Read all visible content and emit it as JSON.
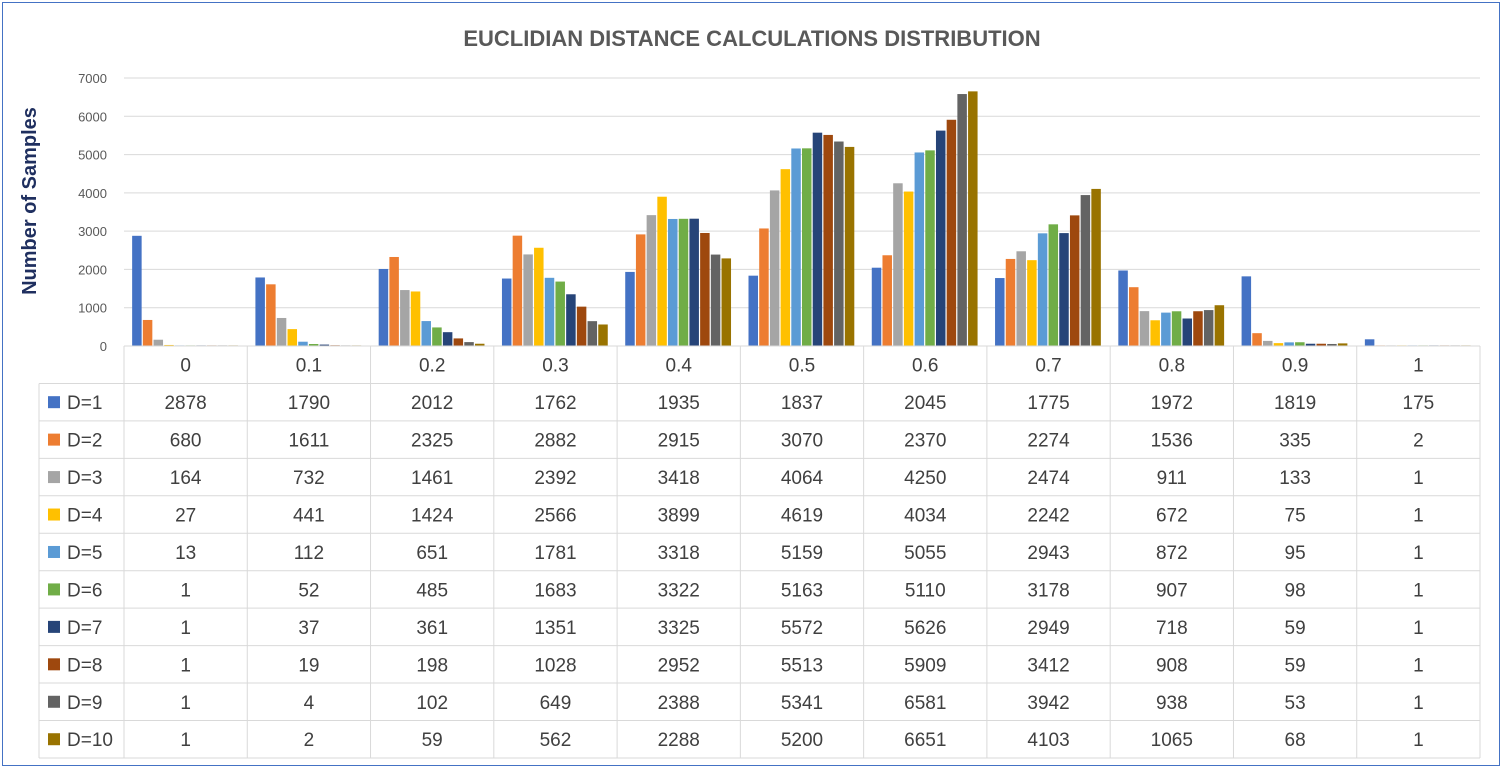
{
  "chart_data": {
    "type": "bar",
    "title": "EUCLIDIAN DISTANCE CALCULATIONS DISTRIBUTION",
    "ylabel": "Number of Samples",
    "xlabel": "",
    "ylim": [
      0,
      7000
    ],
    "yticks": [
      0,
      1000,
      2000,
      3000,
      4000,
      5000,
      6000,
      7000
    ],
    "grid": true,
    "legend": "data-table",
    "categories": [
      "0",
      "0.1",
      "0.2",
      "0.3",
      "0.4",
      "0.5",
      "0.6",
      "0.7",
      "0.8",
      "0.9",
      "1"
    ],
    "series": [
      {
        "name": "D=1",
        "color": "#4472C4",
        "values": [
          2878,
          1790,
          2012,
          1762,
          1935,
          1837,
          2045,
          1775,
          1972,
          1819,
          175
        ]
      },
      {
        "name": "D=2",
        "color": "#ED7D31",
        "values": [
          680,
          1611,
          2325,
          2882,
          2915,
          3070,
          2370,
          2274,
          1536,
          335,
          2
        ]
      },
      {
        "name": "D=3",
        "color": "#A5A5A5",
        "values": [
          164,
          732,
          1461,
          2392,
          3418,
          4064,
          4250,
          2474,
          911,
          133,
          1
        ]
      },
      {
        "name": "D=4",
        "color": "#FFC000",
        "values": [
          27,
          441,
          1424,
          2566,
          3899,
          4619,
          4034,
          2242,
          672,
          75,
          1
        ]
      },
      {
        "name": "D=5",
        "color": "#5B9BD5",
        "values": [
          13,
          112,
          651,
          1781,
          3318,
          5159,
          5055,
          2943,
          872,
          95,
          1
        ]
      },
      {
        "name": "D=6",
        "color": "#70AD47",
        "values": [
          1,
          52,
          485,
          1683,
          3322,
          5163,
          5110,
          3178,
          907,
          98,
          1
        ]
      },
      {
        "name": "D=7",
        "color": "#264478",
        "values": [
          1,
          37,
          361,
          1351,
          3325,
          5572,
          5626,
          2949,
          718,
          59,
          1
        ]
      },
      {
        "name": "D=8",
        "color": "#9E480E",
        "values": [
          1,
          19,
          198,
          1028,
          2952,
          5513,
          5909,
          3412,
          908,
          59,
          1
        ]
      },
      {
        "name": "D=9",
        "color": "#636363",
        "values": [
          1,
          4,
          102,
          649,
          2388,
          5341,
          6581,
          3942,
          938,
          53,
          1
        ]
      },
      {
        "name": "D=10",
        "color": "#997300",
        "values": [
          1,
          2,
          59,
          562,
          2288,
          5200,
          6651,
          4103,
          1065,
          68,
          1
        ]
      }
    ]
  }
}
